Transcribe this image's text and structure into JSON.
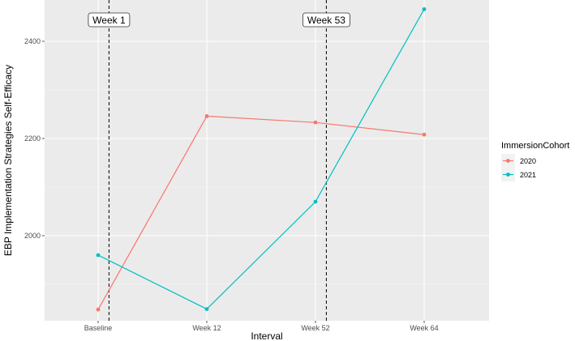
{
  "chart_data": {
    "type": "line",
    "xlabel": "Interval",
    "ylabel": "EBP Implementation Strategies Self-Efficacy",
    "categories": [
      "Baseline",
      "Week 12",
      "Week 52",
      "Week 64"
    ],
    "yticks": [
      2000,
      2200,
      2400
    ],
    "ylim": [
      1825,
      2485
    ],
    "grid": true,
    "legend_title": "ImmersionCohort",
    "legend_position": "right",
    "series": [
      {
        "name": "2020",
        "color": "#F8766D",
        "values": [
          1848,
          2246,
          2233,
          2208
        ]
      },
      {
        "name": "2021",
        "color": "#00BFC4",
        "values": [
          1960,
          1849,
          2070,
          2466
        ]
      }
    ],
    "annotations": [
      {
        "label": "Week 1",
        "x_position": 0.1
      },
      {
        "label": "Week 53",
        "x_position": 2.1
      }
    ]
  }
}
